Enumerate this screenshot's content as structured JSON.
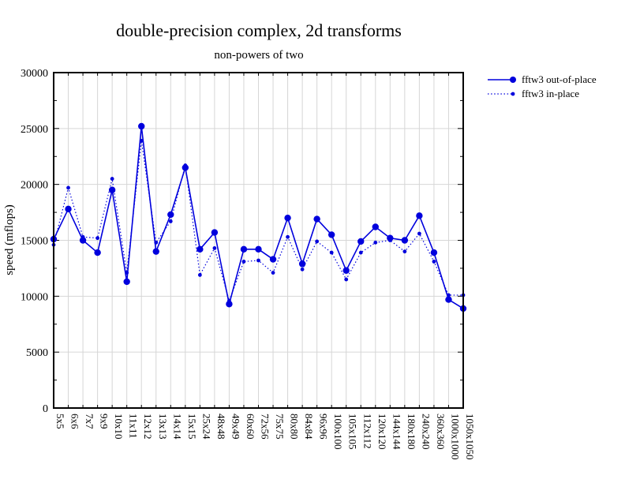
{
  "chart_data": {
    "type": "line",
    "title": "double-precision complex, 2d transforms",
    "subtitle": "non-powers of two",
    "xlabel": "",
    "ylabel": "speed (mflops)",
    "ylim": [
      0,
      30000
    ],
    "ytick_step": 5000,
    "ytick_minor_step": 2500,
    "grid": true,
    "legend_position": "top-right-outside",
    "categories": [
      "5x5",
      "6x6",
      "7x7",
      "9x9",
      "10x10",
      "11x11",
      "12x12",
      "13x13",
      "14x14",
      "15x15",
      "25x24",
      "48x48",
      "49x49",
      "60x60",
      "72x56",
      "75x75",
      "80x80",
      "84x84",
      "96x96",
      "100x100",
      "105x105",
      "112x112",
      "120x120",
      "144x144",
      "180x180",
      "240x240",
      "360x360",
      "1000x1000",
      "1050x1050"
    ],
    "series": [
      {
        "name": "fftw3 out-of-place",
        "line_style": "solid",
        "marker": "filled-circle-large",
        "values": [
          15100,
          17800,
          15000,
          13900,
          19500,
          11300,
          25200,
          14000,
          17300,
          21500,
          14200,
          15700,
          9300,
          14200,
          14200,
          13300,
          17000,
          12900,
          16900,
          15500,
          12300,
          14900,
          16200,
          15200,
          15000,
          17200,
          13900,
          9700,
          8900
        ]
      },
      {
        "name": "fftw3 in-place",
        "line_style": "dotted",
        "marker": "filled-circle-small",
        "values": [
          14600,
          19700,
          15300,
          15200,
          20500,
          12100,
          23900,
          14800,
          16700,
          21700,
          11900,
          14300,
          9600,
          13100,
          13200,
          12100,
          15300,
          12400,
          14900,
          13900,
          11500,
          13900,
          14800,
          15000,
          14000,
          15600,
          13100,
          10100,
          10100
        ]
      }
    ],
    "colors": {
      "line": "#0000dd",
      "grid": "#d6d6d6",
      "axis": "#000000",
      "text": "#000000",
      "background": "#ffffff"
    }
  }
}
